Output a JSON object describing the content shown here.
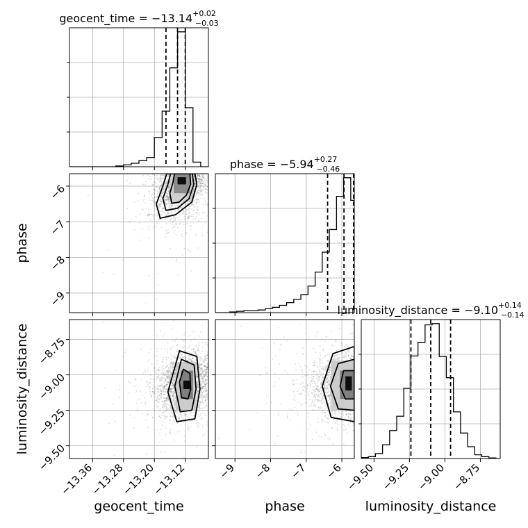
{
  "chart_data": {
    "type": "corner",
    "parameters": [
      "geocent_time",
      "phase",
      "luminosity_distance"
    ],
    "axis_labels": {
      "geocent_time": "geocent_time",
      "phase": "phase",
      "luminosity_distance": "luminosity_distance"
    },
    "titles": [
      {
        "param": "geocent_time",
        "prefix": "geocent_time = ",
        "median": "−13.14",
        "upper": "+0.02",
        "lower": "−0.03"
      },
      {
        "param": "phase",
        "prefix": "phase = ",
        "median": "−5.94",
        "upper": "+0.27",
        "lower": "−0.46"
      },
      {
        "param": "luminosity_distance",
        "prefix": "luminosity_distance = ",
        "median": "−9.10",
        "upper": "+0.14",
        "lower": "−0.14"
      }
    ],
    "ranges": {
      "geocent_time": [
        -13.42,
        -13.06
      ],
      "phase": [
        -9.55,
        -5.65
      ],
      "luminosity_distance": [
        -9.59,
        -8.61
      ]
    },
    "ticks": {
      "geocent_time": [
        -13.36,
        -13.28,
        -13.2,
        -13.12
      ],
      "phase": [
        -9,
        -8,
        -7,
        -6
      ],
      "luminosity_distance": [
        -9.5,
        -9.25,
        -9.0,
        -8.75
      ]
    },
    "tick_labels": {
      "geocent_time": [
        "−13.36",
        "−13.28",
        "−13.20",
        "−13.12"
      ],
      "phase": [
        "−9",
        "−8",
        "−7",
        "−6"
      ],
      "luminosity_distance": [
        "−9.50",
        "−9.25",
        "−9.00",
        "−8.75"
      ]
    },
    "quantiles": {
      "geocent_time": [
        -13.17,
        -13.14,
        -13.12
      ],
      "phase": [
        -6.4,
        -5.94,
        -5.67
      ],
      "luminosity_distance": [
        -9.24,
        -9.1,
        -8.96
      ]
    },
    "histograms": {
      "geocent_time": {
        "edges": [
          -13.42,
          -13.4,
          -13.38,
          -13.36,
          -13.34,
          -13.32,
          -13.3,
          -13.28,
          -13.26,
          -13.24,
          -13.22,
          -13.2,
          -13.18,
          -13.16,
          -13.14,
          -13.12,
          -13.1,
          -13.08,
          -13.06
        ],
        "counts": [
          0,
          0,
          0,
          0,
          0,
          0,
          0.2,
          0.5,
          0.9,
          1.6,
          2.4,
          7.6,
          14.5,
          25.8,
          35.2,
          15.4,
          1.2,
          0
        ]
      },
      "phase": {
        "edges": [
          -9.55,
          -9.35,
          -9.15,
          -8.95,
          -8.75,
          -8.55,
          -8.35,
          -8.15,
          -7.95,
          -7.75,
          -7.55,
          -7.35,
          -7.15,
          -6.95,
          -6.75,
          -6.55,
          -6.35,
          -6.15,
          -5.95,
          -5.75,
          -5.65
        ],
        "counts": [
          0,
          0,
          0.1,
          0.2,
          0.3,
          0.3,
          0.4,
          0.6,
          0.8,
          1.1,
          1.5,
          2.0,
          2.7,
          4.0,
          6.1,
          9.1,
          12.5,
          17.5,
          20.3,
          16.9
        ]
      },
      "luminosity_distance": {
        "edges": [
          -9.59,
          -9.54,
          -9.49,
          -9.44,
          -9.39,
          -9.34,
          -9.29,
          -9.24,
          -9.19,
          -9.14,
          -9.09,
          -9.04,
          -8.99,
          -8.94,
          -8.89,
          -8.84,
          -8.79,
          -8.74,
          -8.69,
          -8.64,
          -8.61
        ],
        "counts": [
          0.15,
          0.3,
          0.8,
          2.2,
          4.5,
          6.8,
          11.3,
          16.5,
          18.7,
          21.5,
          21.7,
          16.4,
          13.0,
          7.5,
          4.1,
          1.9,
          0.6,
          0.3,
          0.1,
          0
        ]
      }
    },
    "pairs": [
      {
        "x": "geocent_time",
        "y": "phase",
        "peak": [
          -13.125,
          -5.85
        ],
        "cov": [
          [
            0.0013,
            0.0064
          ],
          [
            0.0064,
            0.23
          ]
        ],
        "contours": [
          [
            [
              -13.148,
              -5.65
            ],
            [
              -13.108,
              -5.65
            ],
            [
              -13.106,
              -5.95
            ],
            [
              -13.117,
              -6.25
            ],
            [
              -13.136,
              -6.45
            ],
            [
              -13.155,
              -6.48
            ],
            [
              -13.16,
              -6.2
            ],
            [
              -13.152,
              -5.9
            ]
          ],
          [
            [
              -13.158,
              -5.65
            ],
            [
              -13.102,
              -5.65
            ],
            [
              -13.098,
              -5.95
            ],
            [
              -13.11,
              -6.35
            ],
            [
              -13.14,
              -6.62
            ],
            [
              -13.17,
              -6.68
            ],
            [
              -13.178,
              -6.35
            ],
            [
              -13.165,
              -5.95
            ]
          ],
          [
            [
              -13.168,
              -5.65
            ],
            [
              -13.095,
              -5.65
            ],
            [
              -13.09,
              -5.95
            ],
            [
              -13.103,
              -6.45
            ],
            [
              -13.145,
              -6.8
            ],
            [
              -13.185,
              -6.9
            ],
            [
              -13.195,
              -6.5
            ],
            [
              -13.178,
              -6.0
            ]
          ]
        ],
        "hist_cells": [
          {
            "x": [
              -13.14,
              -13.118
            ],
            "y": [
              -5.95,
              -5.75
            ],
            "level": 0.95
          },
          {
            "x": [
              -13.15,
              -13.108
            ],
            "y": [
              -6.2,
              -5.65
            ],
            "level": 0.45
          },
          {
            "x": [
              -13.16,
              -13.1
            ],
            "y": [
              -6.45,
              -5.65
            ],
            "level": 0.18
          }
        ]
      },
      {
        "x": "geocent_time",
        "y": "luminosity_distance",
        "peak": [
          -13.12,
          -9.06
        ],
        "cov": [
          [
            0.0014,
            0.0008
          ],
          [
            0.0008,
            0.0121
          ]
        ],
        "contours": [
          [
            [
              -13.125,
              -8.96
            ],
            [
              -13.108,
              -8.99
            ],
            [
              -13.106,
              -9.1
            ],
            [
              -13.113,
              -9.17
            ],
            [
              -13.13,
              -9.16
            ],
            [
              -13.135,
              -9.05
            ]
          ],
          [
            [
              -13.13,
              -8.89
            ],
            [
              -13.097,
              -8.93
            ],
            [
              -13.092,
              -9.1
            ],
            [
              -13.103,
              -9.25
            ],
            [
              -13.133,
              -9.26
            ],
            [
              -13.147,
              -9.08
            ]
          ],
          [
            [
              -13.135,
              -8.83
            ],
            [
              -13.09,
              -8.87
            ],
            [
              -13.082,
              -9.1
            ],
            [
              -13.095,
              -9.31
            ],
            [
              -13.142,
              -9.33
            ],
            [
              -13.165,
              -9.12
            ]
          ]
        ],
        "hist_cells": [
          {
            "x": [
              -13.125,
              -13.108
            ],
            "y": [
              -9.1,
              -9.04
            ],
            "level": 0.95
          },
          {
            "x": [
              -13.132,
              -13.1
            ],
            "y": [
              -9.17,
              -8.97
            ],
            "level": 0.5
          },
          {
            "x": [
              -13.145,
              -13.092
            ],
            "y": [
              -9.25,
              -8.91
            ],
            "level": 0.2
          }
        ]
      },
      {
        "x": "phase",
        "y": "luminosity_distance",
        "peak": [
          -5.85,
          -9.07
        ],
        "cov": [
          [
            0.25,
            0.0
          ],
          [
            0.0,
            0.0121
          ]
        ],
        "contours": [
          [
            [
              -5.95,
              -8.97
            ],
            [
              -5.65,
              -8.97
            ],
            [
              -5.65,
              -9.17
            ],
            [
              -5.9,
              -9.17
            ],
            [
              -6.05,
              -9.08
            ]
          ],
          [
            [
              -6.1,
              -8.92
            ],
            [
              -5.65,
              -8.89
            ],
            [
              -5.65,
              -9.25
            ],
            [
              -6.1,
              -9.24
            ],
            [
              -6.32,
              -9.08
            ]
          ],
          [
            [
              -6.25,
              -8.85
            ],
            [
              -5.65,
              -8.8
            ],
            [
              -5.65,
              -9.33
            ],
            [
              -6.3,
              -9.3
            ],
            [
              -6.55,
              -9.08
            ]
          ]
        ],
        "hist_cells": [
          {
            "x": [
              -5.9,
              -5.72
            ],
            "y": [
              -9.11,
              -9.01
            ],
            "level": 0.95
          },
          {
            "x": [
              -6.05,
              -5.65
            ],
            "y": [
              -9.17,
              -8.97
            ],
            "level": 0.5
          },
          {
            "x": [
              -6.3,
              -5.65
            ],
            "y": [
              -9.25,
              -8.9
            ],
            "level": 0.2
          }
        ]
      }
    ],
    "scatter_points_per_panel": 2500,
    "grid": true,
    "colors": {
      "line": "#000000",
      "grid": "#b0b0b0",
      "point": "#000000"
    }
  }
}
